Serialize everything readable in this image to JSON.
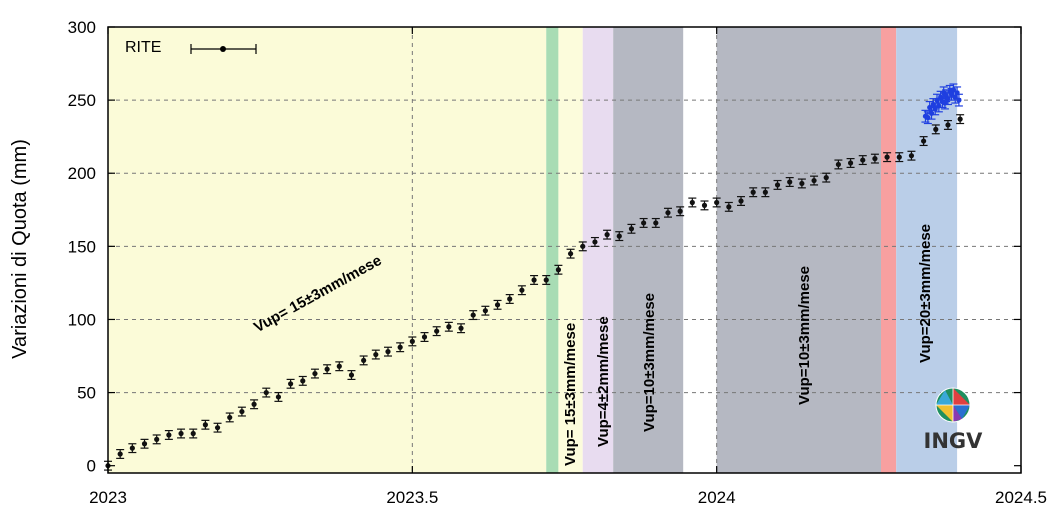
{
  "chart_data": {
    "type": "scatter",
    "title": "",
    "xlabel": "",
    "ylabel": "Variazioni di Quota (mm)",
    "xlim": [
      2023,
      2024.5
    ],
    "ylim": [
      -5,
      300
    ],
    "x_ticks": [
      2023,
      2023.5,
      2024,
      2024.5
    ],
    "x_tick_labels": [
      "2023",
      "2023.5",
      "2024",
      "2024.5"
    ],
    "y_ticks": [
      0,
      50,
      100,
      150,
      200,
      250,
      300
    ],
    "y_tick_labels": [
      "0",
      "50",
      "100",
      "150",
      "200",
      "250",
      "300"
    ],
    "grid": true,
    "legend": {
      "label": "RITE",
      "position": "top-left"
    },
    "periods": [
      {
        "start": 2023.0,
        "end": 2023.72,
        "color": "#fbfbd8",
        "label": "Vup= 15±3mm/mese"
      },
      {
        "start": 2023.72,
        "end": 2023.74,
        "color": "#a8dcb4",
        "label": ""
      },
      {
        "start": 2023.74,
        "end": 2023.78,
        "color": "#fcfcdc",
        "label": "Vup= 15±3mm/mese"
      },
      {
        "start": 2023.78,
        "end": 2023.83,
        "color": "#e8dcf0",
        "label": "Vup=4±2mm/mese"
      },
      {
        "start": 2023.83,
        "end": 2023.945,
        "color": "#b5b8c2",
        "label": "Vup=10±3mm/mese"
      },
      {
        "start": 2024.0,
        "end": 2024.27,
        "color": "#b5b8c2",
        "label": "Vup=10±3mm/mese"
      },
      {
        "start": 2024.27,
        "end": 2024.295,
        "color": "#f7a0a0",
        "label": ""
      },
      {
        "start": 2024.295,
        "end": 2024.395,
        "color": "#bacee8",
        "label": "Vup=20±3mm/mese"
      }
    ],
    "series": [
      {
        "color": "#111111",
        "points": [
          [
            2023.0,
            0
          ],
          [
            2023.02,
            8
          ],
          [
            2023.04,
            12
          ],
          [
            2023.06,
            15
          ],
          [
            2023.08,
            18
          ],
          [
            2023.1,
            21
          ],
          [
            2023.12,
            22
          ],
          [
            2023.14,
            22
          ],
          [
            2023.16,
            28
          ],
          [
            2023.18,
            26
          ],
          [
            2023.2,
            33
          ],
          [
            2023.22,
            37
          ],
          [
            2023.24,
            42
          ],
          [
            2023.26,
            50
          ],
          [
            2023.28,
            47
          ],
          [
            2023.3,
            56
          ],
          [
            2023.32,
            58
          ],
          [
            2023.34,
            63
          ],
          [
            2023.36,
            66
          ],
          [
            2023.38,
            68
          ],
          [
            2023.4,
            62
          ],
          [
            2023.42,
            72
          ],
          [
            2023.44,
            76
          ],
          [
            2023.46,
            78
          ],
          [
            2023.48,
            81
          ],
          [
            2023.5,
            85
          ],
          [
            2023.52,
            88
          ],
          [
            2023.54,
            92
          ],
          [
            2023.56,
            95
          ],
          [
            2023.58,
            94
          ],
          [
            2023.6,
            103
          ],
          [
            2023.62,
            106
          ],
          [
            2023.64,
            110
          ],
          [
            2023.66,
            114
          ],
          [
            2023.68,
            120
          ],
          [
            2023.7,
            127
          ],
          [
            2023.72,
            127
          ],
          [
            2023.74,
            134
          ],
          [
            2023.76,
            145
          ],
          [
            2023.78,
            150
          ],
          [
            2023.8,
            153
          ],
          [
            2023.82,
            158
          ],
          [
            2023.84,
            157
          ],
          [
            2023.86,
            162
          ],
          [
            2023.88,
            166
          ],
          [
            2023.9,
            166
          ],
          [
            2023.92,
            173
          ],
          [
            2023.94,
            174
          ],
          [
            2023.96,
            180
          ],
          [
            2023.98,
            178
          ],
          [
            2024.0,
            180
          ],
          [
            2024.02,
            177
          ],
          [
            2024.04,
            181
          ],
          [
            2024.06,
            187
          ],
          [
            2024.08,
            187
          ],
          [
            2024.1,
            192
          ],
          [
            2024.12,
            194
          ],
          [
            2024.14,
            193
          ],
          [
            2024.16,
            195
          ],
          [
            2024.18,
            197
          ],
          [
            2024.2,
            206
          ],
          [
            2024.22,
            207
          ],
          [
            2024.24,
            209
          ],
          [
            2024.26,
            210
          ],
          [
            2024.28,
            211
          ],
          [
            2024.3,
            211
          ],
          [
            2024.32,
            212
          ],
          [
            2024.34,
            222
          ],
          [
            2024.36,
            230
          ],
          [
            2024.38,
            233
          ],
          [
            2024.4,
            237
          ]
        ]
      },
      {
        "color": "#1f3fe0",
        "points": [
          [
            2024.343,
            239
          ],
          [
            2024.347,
            238
          ],
          [
            2024.35,
            245
          ],
          [
            2024.353,
            241
          ],
          [
            2024.356,
            247
          ],
          [
            2024.359,
            244
          ],
          [
            2024.362,
            250
          ],
          [
            2024.365,
            246
          ],
          [
            2024.368,
            252
          ],
          [
            2024.371,
            249
          ],
          [
            2024.373,
            255
          ],
          [
            2024.375,
            248
          ],
          [
            2024.377,
            253
          ],
          [
            2024.38,
            251
          ],
          [
            2024.383,
            256
          ],
          [
            2024.386,
            254
          ],
          [
            2024.389,
            257
          ],
          [
            2024.392,
            252
          ],
          [
            2024.395,
            255
          ],
          [
            2024.398,
            250
          ]
        ]
      }
    ]
  },
  "logo": {
    "text": "INGV"
  }
}
